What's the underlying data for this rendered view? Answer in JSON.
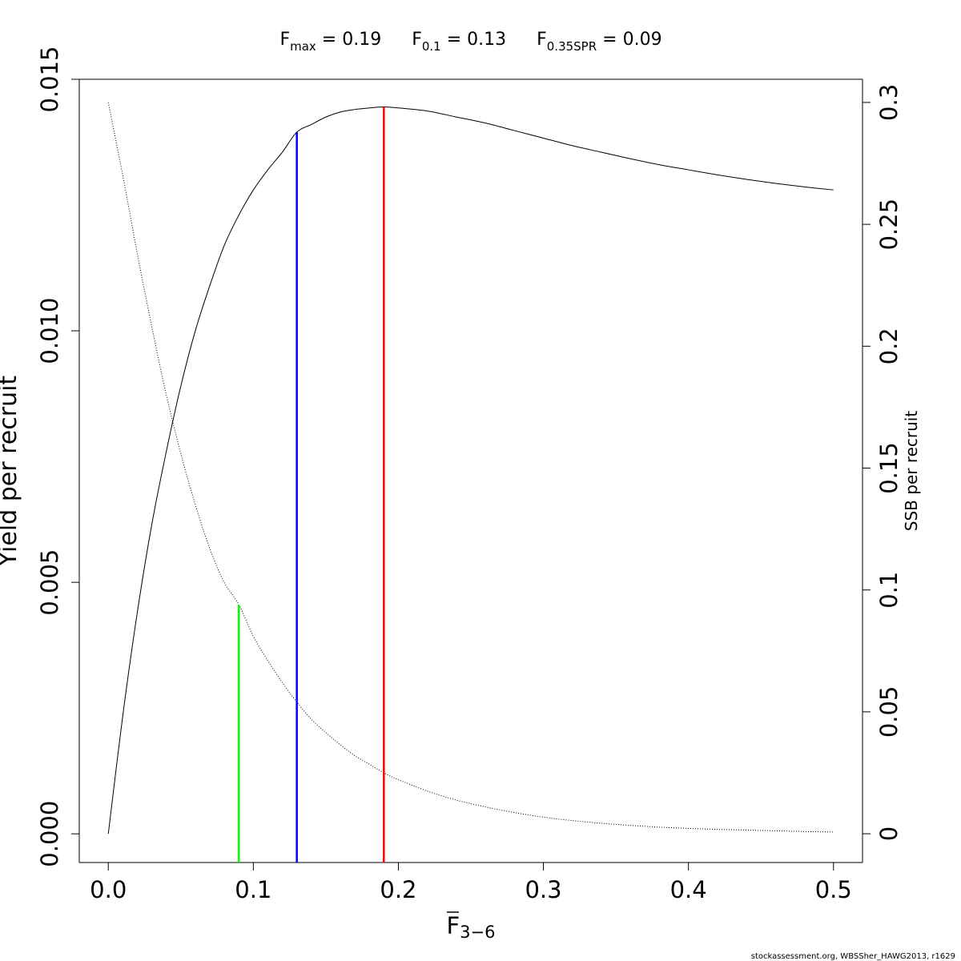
{
  "chart_data": {
    "type": "line",
    "title_parts": [
      {
        "base": "F",
        "sub": "max",
        "value": " = 0.19"
      },
      {
        "base": "F",
        "sub": "0.1",
        "value": " = 0.13"
      },
      {
        "base": "F",
        "sub": "0.35SPR",
        "value": " = 0.09"
      }
    ],
    "xlabel": {
      "base": "F",
      "sub": "3−6"
    },
    "ylabel_left": "Yield per recruit",
    "ylabel_right": "SSB per recruit",
    "xlim": [
      -0.02,
      0.52
    ],
    "ylim_left": [
      -0.00057,
      0.015
    ],
    "ylim_right": [
      -0.0118,
      0.3095
    ],
    "x_ticks": [
      0.0,
      0.1,
      0.2,
      0.3,
      0.4,
      0.5
    ],
    "x_tick_labels": [
      "0.0",
      "0.1",
      "0.2",
      "0.3",
      "0.4",
      "0.5"
    ],
    "y_left_ticks": [
      0.0,
      0.005,
      0.01,
      0.015
    ],
    "y_left_tick_labels": [
      "0.000",
      "0.005",
      "0.010",
      "0.015"
    ],
    "y_right_ticks": [
      0,
      0.05,
      0.1,
      0.15,
      0.2,
      0.25,
      0.3
    ],
    "y_right_tick_labels": [
      "0",
      "0.05",
      "0.1",
      "0.15",
      "0.2",
      "0.25",
      "0.3"
    ],
    "grid": false,
    "series": [
      {
        "axis": "left",
        "style": "solid",
        "color": "#000000",
        "x": [
          0,
          0.01,
          0.02,
          0.03,
          0.04,
          0.05,
          0.06,
          0.07,
          0.08,
          0.09,
          0.1,
          0.11,
          0.12,
          0.13,
          0.14,
          0.15,
          0.16,
          0.17,
          0.18,
          0.19,
          0.2,
          0.22,
          0.24,
          0.26,
          0.28,
          0.3,
          0.32,
          0.34,
          0.36,
          0.38,
          0.4,
          0.42,
          0.44,
          0.46,
          0.48,
          0.5
        ],
        "values": [
          0.0,
          0.00235,
          0.0044,
          0.00615,
          0.0076,
          0.0089,
          0.01,
          0.0109,
          0.0117,
          0.0123,
          0.0128,
          0.0132,
          0.01355,
          0.01395,
          0.0141,
          0.01425,
          0.01435,
          0.0144,
          0.01443,
          0.01445,
          0.01443,
          0.01437,
          0.01425,
          0.01413,
          0.01398,
          0.01383,
          0.01368,
          0.01355,
          0.01342,
          0.0133,
          0.0132,
          0.0131,
          0.01301,
          0.01293,
          0.01286,
          0.0128
        ]
      },
      {
        "axis": "right",
        "style": "dotted",
        "color": "#000000",
        "x": [
          0,
          0.01,
          0.02,
          0.03,
          0.04,
          0.05,
          0.06,
          0.07,
          0.08,
          0.09,
          0.1,
          0.11,
          0.12,
          0.13,
          0.14,
          0.15,
          0.16,
          0.17,
          0.18,
          0.19,
          0.2,
          0.22,
          0.24,
          0.26,
          0.28,
          0.3,
          0.32,
          0.34,
          0.36,
          0.38,
          0.4,
          0.42,
          0.44,
          0.46,
          0.48,
          0.5
        ],
        "values": [
          0.3,
          0.27,
          0.238,
          0.208,
          0.18,
          0.156,
          0.135,
          0.117,
          0.103,
          0.094,
          0.081,
          0.071,
          0.062,
          0.054,
          0.047,
          0.0415,
          0.0365,
          0.032,
          0.0285,
          0.025,
          0.0222,
          0.0175,
          0.0138,
          0.011,
          0.0087,
          0.0068,
          0.0054,
          0.0043,
          0.0034,
          0.0027,
          0.0022,
          0.0018,
          0.0015,
          0.0012,
          0.0009,
          0.0007
        ]
      }
    ],
    "reference_lines": [
      {
        "x": 0.09,
        "axis": "right",
        "y_top": 0.094,
        "color": "#00ff00"
      },
      {
        "x": 0.13,
        "axis": "left",
        "y_top": 0.01395,
        "color": "#0000ff"
      },
      {
        "x": 0.19,
        "axis": "left",
        "y_top": 0.01445,
        "color": "#ff0000"
      }
    ],
    "footer": "stockassessment.org, WBSSher_HAWG2013, r1629"
  }
}
